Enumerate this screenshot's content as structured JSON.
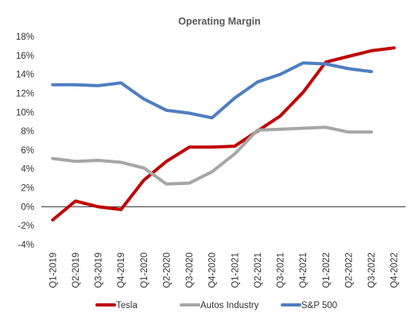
{
  "chart_data": {
    "type": "line",
    "title": "Operating Margin",
    "xlabel": "",
    "ylabel": "",
    "categories": [
      "Q1-2019",
      "Q2-2019",
      "Q3-2019",
      "Q4-2019",
      "Q1-2020",
      "Q2-2020",
      "Q3-2020",
      "Q4-2020",
      "Q1-2021",
      "Q2-2021",
      "Q3-2021",
      "Q4-2021",
      "Q1-2022",
      "Q2-2022",
      "Q3-2022",
      "Q4-2022"
    ],
    "ylim": [
      -4,
      18
    ],
    "yticks": [
      -4,
      -2,
      0,
      2,
      4,
      6,
      8,
      10,
      12,
      14,
      16,
      18
    ],
    "ytick_labels": [
      "-4%",
      "-2%",
      "0%",
      "2%",
      "4%",
      "6%",
      "8%",
      "10%",
      "12%",
      "14%",
      "16%",
      "18%"
    ],
    "grid": false,
    "legend_position": "bottom",
    "series": [
      {
        "name": "Tesla",
        "color": "#C00000",
        "values": [
          -1.4,
          0.6,
          0.0,
          -0.3,
          2.8,
          4.8,
          6.3,
          6.3,
          6.4,
          8.0,
          9.6,
          12.1,
          15.3,
          15.9,
          16.5,
          16.8
        ]
      },
      {
        "name": "Autos Industry",
        "color": "#A6A6A6",
        "values": [
          5.1,
          4.8,
          4.9,
          4.7,
          4.1,
          2.4,
          2.5,
          3.7,
          5.6,
          8.1,
          8.2,
          8.3,
          8.4,
          7.9,
          7.9,
          null
        ]
      },
      {
        "name": "S&P 500",
        "color": "#4F7EC0",
        "values": [
          12.9,
          12.9,
          12.8,
          13.1,
          11.4,
          10.2,
          9.9,
          9.4,
          11.5,
          13.2,
          14.0,
          15.2,
          15.1,
          14.6,
          14.3,
          null
        ]
      }
    ]
  }
}
